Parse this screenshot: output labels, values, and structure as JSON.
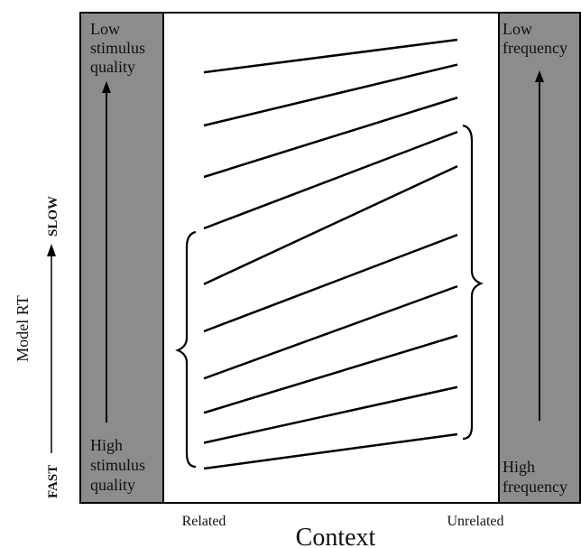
{
  "left_panel": {
    "top_label": [
      "Low",
      "stimulus",
      "quality"
    ],
    "bottom_label": [
      "High",
      "stimulus",
      "quality"
    ]
  },
  "right_panel": {
    "top_label": [
      "Low",
      "frequency"
    ],
    "bottom_label": [
      "High",
      "frequency"
    ]
  },
  "y_axis": {
    "label": "Model RT",
    "fast_label": "FAST",
    "slow_label": "SLOW"
  },
  "x_axis": {
    "label": "Context",
    "left_tick": "Related",
    "right_tick": "Unrelated"
  },
  "colors": {
    "panel_fill": "#8c8c8c",
    "line": "#000000",
    "background": "#ffffff"
  },
  "rt_lines": [
    {
      "related": 0.924,
      "unrelated": 1.0
    },
    {
      "related": 0.8,
      "unrelated": 0.942
    },
    {
      "related": 0.68,
      "unrelated": 0.865
    },
    {
      "related": 0.56,
      "unrelated": 0.785
    },
    {
      "related": 0.43,
      "unrelated": 0.705
    },
    {
      "related": 0.32,
      "unrelated": 0.545
    },
    {
      "related": 0.21,
      "unrelated": 0.425
    },
    {
      "related": 0.13,
      "unrelated": 0.31
    },
    {
      "related": 0.06,
      "unrelated": 0.19
    },
    {
      "related": 0.0,
      "unrelated": 0.08
    }
  ]
}
